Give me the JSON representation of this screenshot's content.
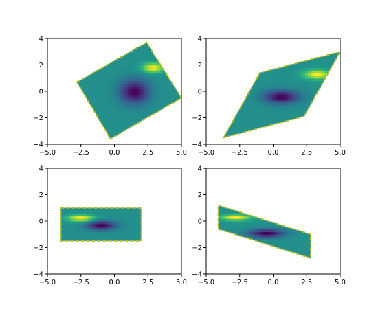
{
  "chart_data": [
    {
      "type": "heatmap",
      "title": "",
      "xlabel": "",
      "ylabel": "",
      "xlim": [
        -5,
        5
      ],
      "ylim": [
        -4,
        4
      ],
      "xticks": [
        "−5.0",
        "−2.5",
        "0.0",
        "2.5",
        "5.0"
      ],
      "yticks": [
        "−4",
        "−2",
        "0",
        "2",
        "4"
      ],
      "clip_polygon": [
        [
          -2.8,
          0.7
        ],
        [
          2.4,
          3.7
        ],
        [
          5.0,
          -0.5
        ],
        [
          -0.3,
          -3.6
        ]
      ],
      "features": [
        {
          "kind": "low",
          "center": [
            1.5,
            0.0
          ],
          "spread": [
            1.1,
            0.9
          ]
        },
        {
          "kind": "high",
          "center": [
            2.9,
            1.8
          ],
          "spread": [
            0.8,
            0.35
          ]
        }
      ],
      "grid": false,
      "outline_color": "#bcbd22"
    },
    {
      "type": "heatmap",
      "title": "",
      "xlabel": "",
      "ylabel": "",
      "xlim": [
        -5,
        5
      ],
      "ylim": [
        -4,
        4
      ],
      "xticks": [
        "−5.0",
        "−2.5",
        "0.0",
        "2.5",
        "5.0"
      ],
      "yticks": [
        "−4",
        "−2",
        "0",
        "2",
        "4"
      ],
      "clip_polygon": [
        [
          -3.7,
          -3.5
        ],
        [
          -1.0,
          1.4
        ],
        [
          5.0,
          3.0
        ],
        [
          2.3,
          -1.9
        ]
      ],
      "features": [
        {
          "kind": "low",
          "center": [
            0.6,
            -0.4
          ],
          "spread": [
            1.3,
            0.5
          ]
        },
        {
          "kind": "high",
          "center": [
            3.3,
            1.3
          ],
          "spread": [
            1.0,
            0.35
          ]
        }
      ],
      "grid": false,
      "outline_color": "#bcbd22"
    },
    {
      "type": "heatmap",
      "title": "",
      "xlabel": "",
      "ylabel": "",
      "xlim": [
        -5,
        5
      ],
      "ylim": [
        -4,
        4
      ],
      "xticks": [
        "−5.0",
        "−2.5",
        "0.0",
        "2.5",
        "5.0"
      ],
      "yticks": [
        "−4",
        "−2",
        "0",
        "2",
        "4"
      ],
      "clip_polygon": [
        [
          -4.0,
          1.0
        ],
        [
          2.0,
          1.0
        ],
        [
          2.0,
          -1.5
        ],
        [
          -4.0,
          -1.5
        ]
      ],
      "features": [
        {
          "kind": "low",
          "center": [
            -1.0,
            -0.3
          ],
          "spread": [
            1.1,
            0.35
          ]
        },
        {
          "kind": "high",
          "center": [
            -2.5,
            0.25
          ],
          "spread": [
            1.0,
            0.25
          ]
        }
      ],
      "grid": false,
      "outline_color": "#bcbd22"
    },
    {
      "type": "heatmap",
      "title": "",
      "xlabel": "",
      "ylabel": "",
      "xlim": [
        -5,
        5
      ],
      "ylim": [
        -4,
        4
      ],
      "xticks": [
        "−5.0",
        "−2.5",
        "0.0",
        "2.5",
        "5.0"
      ],
      "yticks": [
        "−4",
        "−2",
        "0",
        "2",
        "4"
      ],
      "clip_polygon": [
        [
          -4.1,
          1.2
        ],
        [
          2.8,
          -1.0
        ],
        [
          2.8,
          -2.8
        ],
        [
          -4.1,
          -0.6
        ]
      ],
      "features": [
        {
          "kind": "low",
          "center": [
            -0.5,
            -0.9
          ],
          "spread": [
            1.3,
            0.3
          ]
        },
        {
          "kind": "high",
          "center": [
            -2.8,
            0.3
          ],
          "spread": [
            1.1,
            0.22
          ]
        }
      ],
      "grid": false,
      "outline_color": "#bcbd22"
    }
  ]
}
